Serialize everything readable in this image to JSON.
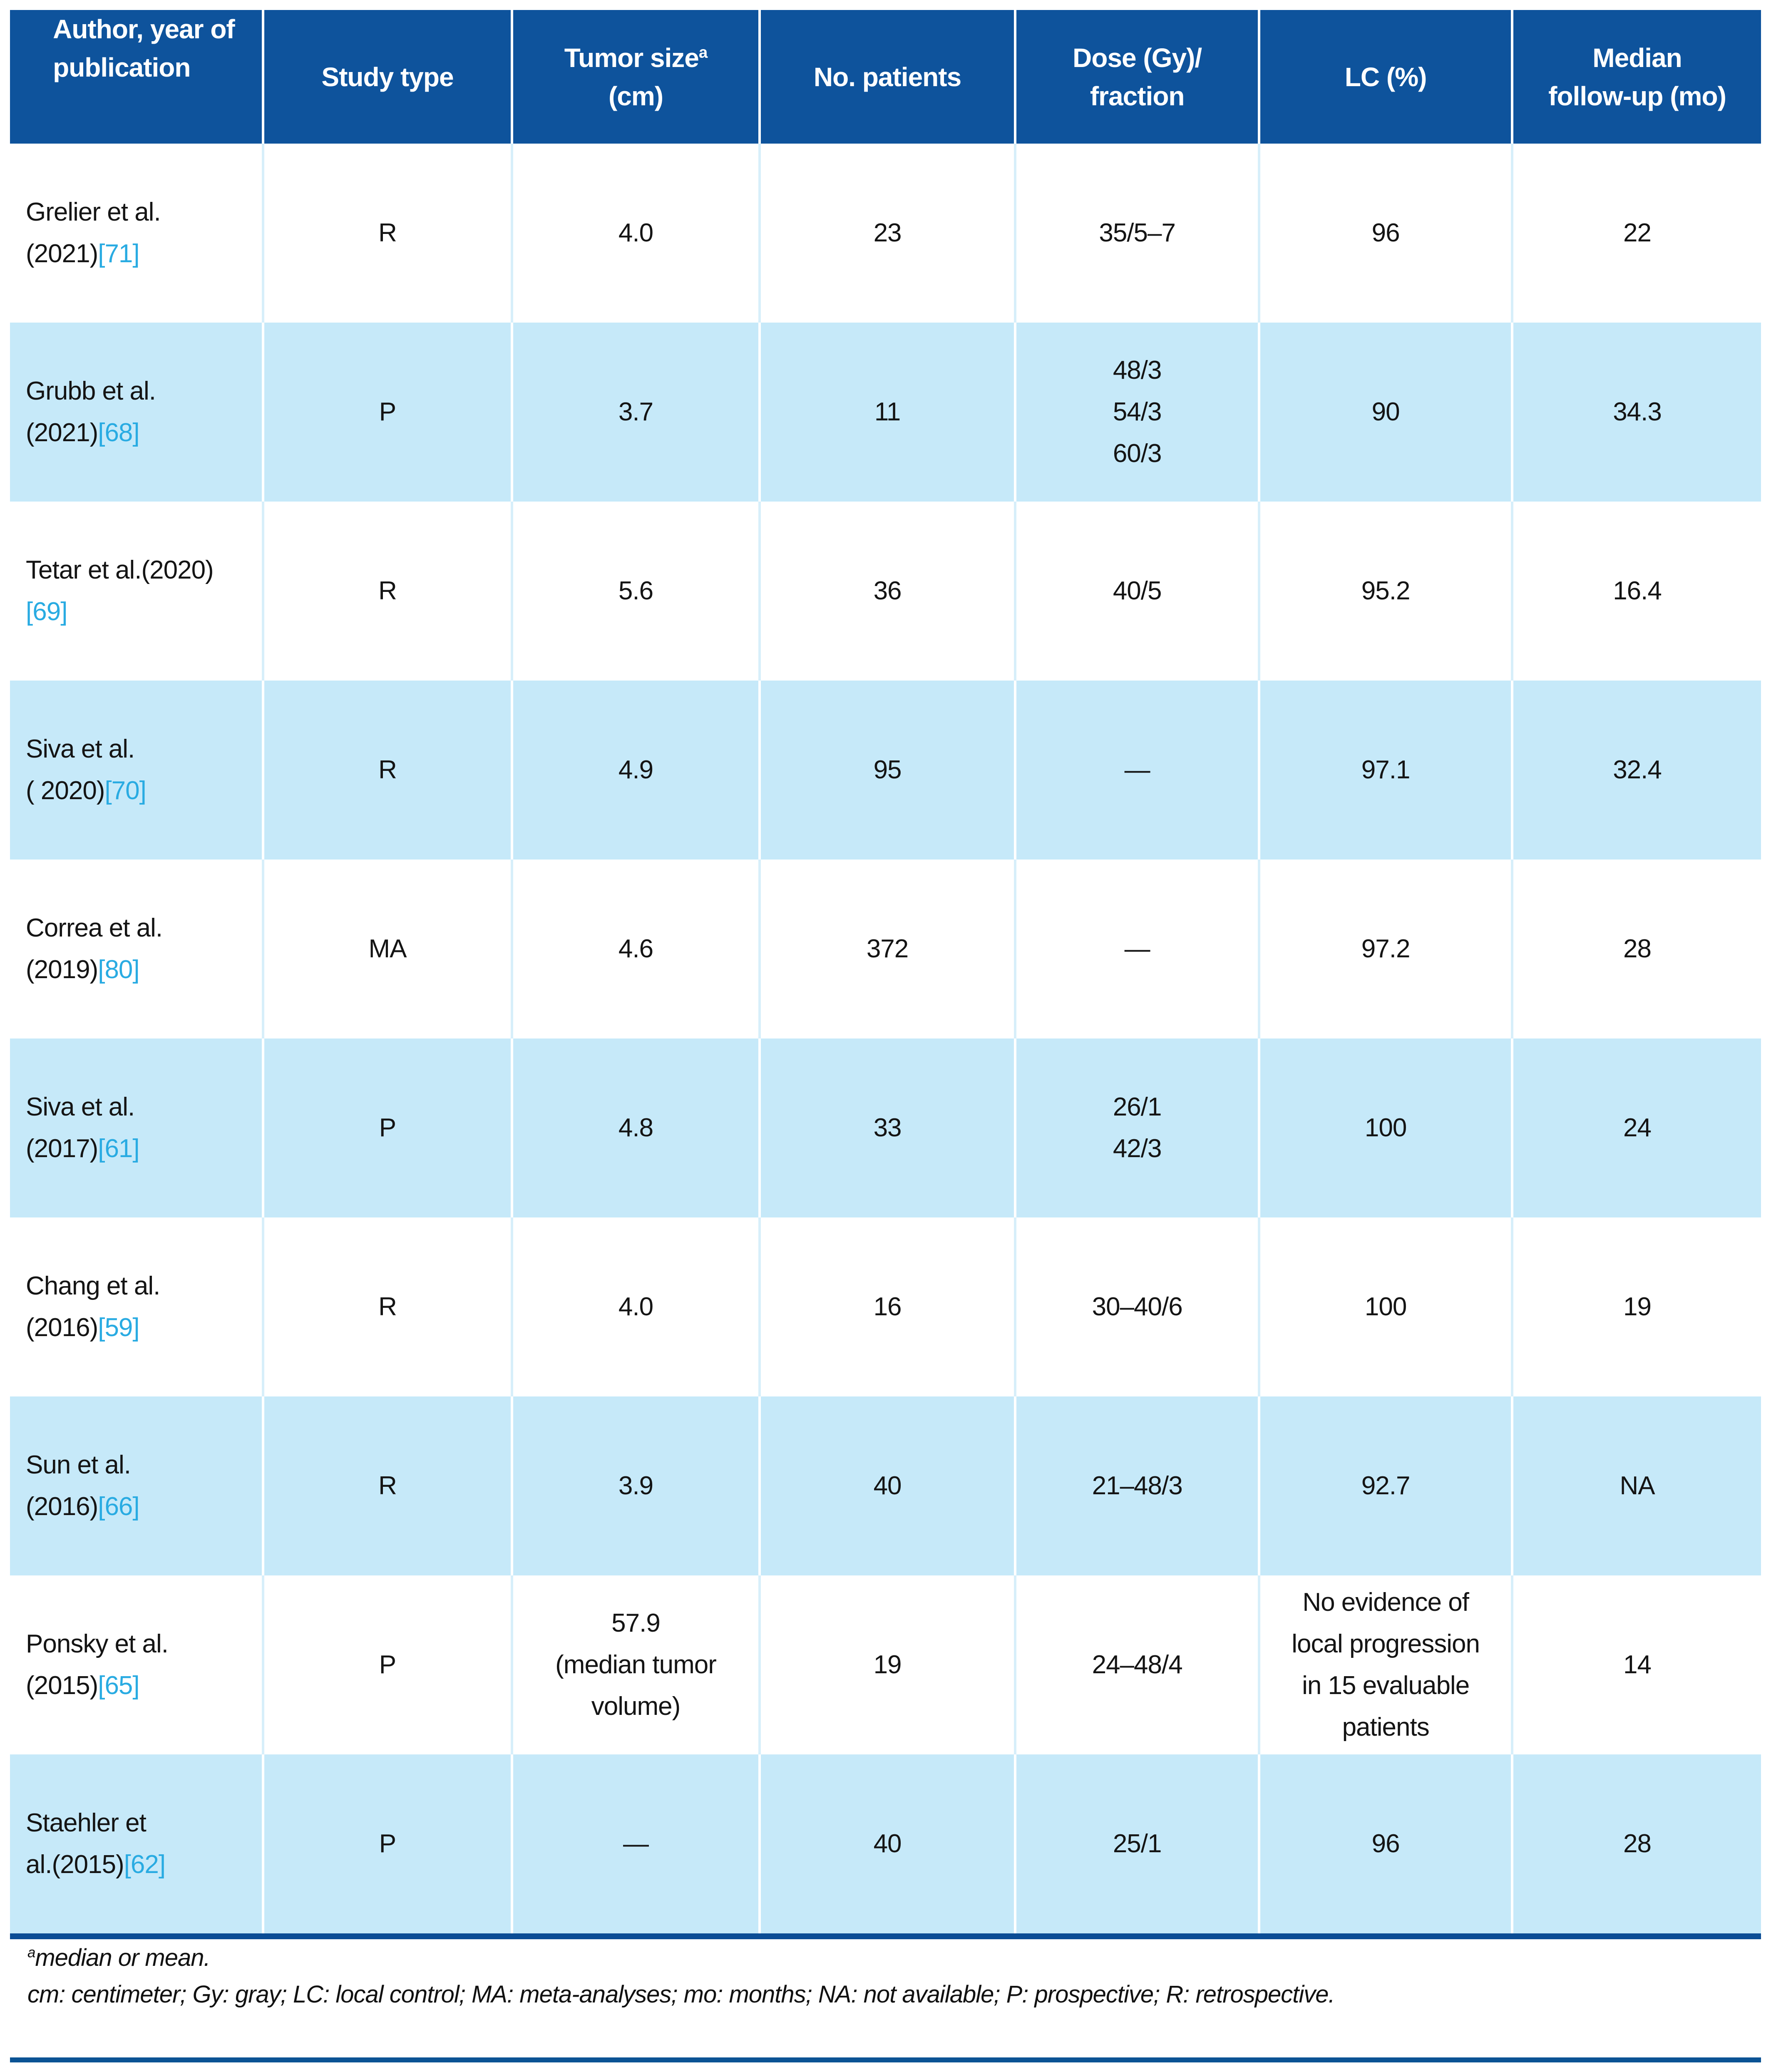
{
  "colors": {
    "header_bg": "#0e539c",
    "row_alt": "#c6e9f9",
    "citation": "#29abe2",
    "table_border": "#0b4d95",
    "bottom_bar": "#0b5394"
  },
  "table": {
    "columns": [
      {
        "line1": "Author, year of",
        "line2": "publication"
      },
      {
        "line1": "Study type",
        "line2": ""
      },
      {
        "line1": "Tumor size",
        "sup": "a",
        "line2": "(cm)"
      },
      {
        "line1": "No. patients",
        "line2": ""
      },
      {
        "line1": "Dose (Gy)/",
        "line2": "fraction"
      },
      {
        "line1": "LC (%)",
        "line2": ""
      },
      {
        "line1": "Median",
        "line2": "follow-up (mo)"
      }
    ],
    "rows": [
      {
        "author_line1": "Grelier et al.",
        "author_line2": "(2021)",
        "citation": "[71]",
        "study_type": "R",
        "tumor": [
          "4.0"
        ],
        "patients": "23",
        "dose": [
          "35/5–7"
        ],
        "lc": [
          "96"
        ],
        "followup": "22"
      },
      {
        "author_line1": "Grubb et al.",
        "author_line2": "(2021)",
        "citation": "[68]",
        "study_type": "P",
        "tumor": [
          "3.7"
        ],
        "patients": "11",
        "dose": [
          "48/3",
          "54/3",
          "60/3"
        ],
        "lc": [
          "90"
        ],
        "followup": "34.3"
      },
      {
        "author_line1": "Tetar et al.(2020)",
        "author_line2": "",
        "citation": "[69]",
        "study_type": "R",
        "tumor": [
          "5.6"
        ],
        "patients": "36",
        "dose": [
          "40/5"
        ],
        "lc": [
          "95.2"
        ],
        "followup": "16.4"
      },
      {
        "author_line1": "Siva et al.",
        "author_line2": "( 2020)",
        "citation": "[70]",
        "study_type": "R",
        "tumor": [
          "4.9"
        ],
        "patients": "95",
        "dose": [
          "—"
        ],
        "lc": [
          "97.1"
        ],
        "followup": "32.4"
      },
      {
        "author_line1": "Correa et al.",
        "author_line2": "(2019)",
        "citation": "[80]",
        "study_type": "MA",
        "tumor": [
          "4.6"
        ],
        "patients": "372",
        "dose": [
          "—"
        ],
        "lc": [
          "97.2"
        ],
        "followup": "28"
      },
      {
        "author_line1": "Siva et al.",
        "author_line2": "(2017)",
        "citation": "[61]",
        "study_type": "P",
        "tumor": [
          "4.8"
        ],
        "patients": "33",
        "dose": [
          "26/1",
          "42/3"
        ],
        "lc": [
          "100"
        ],
        "followup": "24"
      },
      {
        "author_line1": "Chang et al.",
        "author_line2": "(2016)",
        "citation": "[59]",
        "study_type": "R",
        "tumor": [
          "4.0"
        ],
        "patients": "16",
        "dose": [
          "30–40/6"
        ],
        "lc": [
          "100"
        ],
        "followup": "19"
      },
      {
        "author_line1": "Sun et al.",
        "author_line2": "(2016)",
        "citation": "[66]",
        "study_type": "R",
        "tumor": [
          "3.9"
        ],
        "patients": "40",
        "dose": [
          "21–48/3"
        ],
        "lc": [
          "92.7"
        ],
        "followup": "NA"
      },
      {
        "author_line1": "Ponsky et al.",
        "author_line2": "(2015)",
        "citation": "[65]",
        "study_type": "P",
        "tumor": [
          "57.9",
          "(median tumor",
          "volume)"
        ],
        "patients": "19",
        "dose": [
          "24–48/4"
        ],
        "lc": [
          "No evidence of",
          "local progression",
          "in 15 evaluable",
          "patients"
        ],
        "followup": "14"
      },
      {
        "author_line1": "Staehler et",
        "author_line2": "al.(2015)",
        "citation": "[62]",
        "study_type": "P",
        "tumor": [
          "—"
        ],
        "patients": "40",
        "dose": [
          "25/1"
        ],
        "lc": [
          "96"
        ],
        "followup": "28"
      }
    ]
  },
  "footnotes": {
    "sup": "a",
    "line1": "median or mean.",
    "line2": "cm: centimeter; Gy: gray; LC: local control; MA: meta-analyses; mo: months; NA: not available; P: prospective; R: retrospective."
  }
}
